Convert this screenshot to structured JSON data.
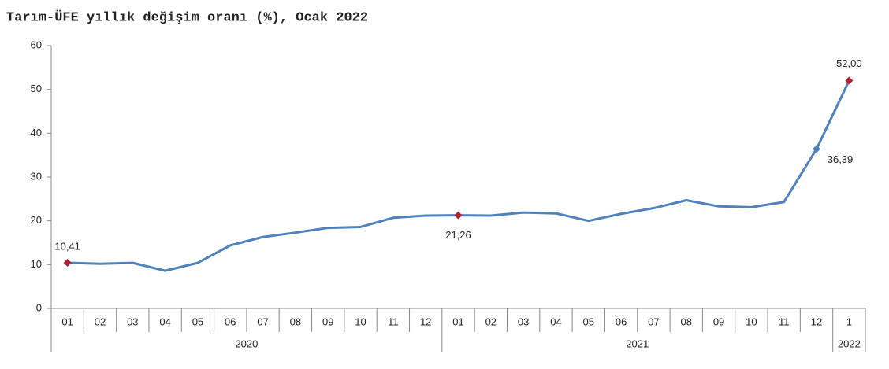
{
  "chart_data": {
    "type": "line",
    "title": "Tarım-ÜFE yıllık değişim oranı (%), Ocak 2022",
    "groups": [
      {
        "name": "2020",
        "categories": [
          "01",
          "02",
          "03",
          "04",
          "05",
          "06",
          "07",
          "08",
          "09",
          "10",
          "11",
          "12"
        ]
      },
      {
        "name": "2021",
        "categories": [
          "01",
          "02",
          "03",
          "04",
          "05",
          "06",
          "07",
          "08",
          "09",
          "10",
          "11",
          "12"
        ]
      },
      {
        "name": "2022",
        "categories": [
          "1"
        ]
      }
    ],
    "values": [
      10.41,
      10.2,
      10.4,
      8.6,
      10.4,
      14.4,
      16.3,
      17.3,
      18.4,
      18.6,
      20.7,
      21.2,
      21.26,
      21.2,
      21.9,
      21.7,
      20.0,
      21.6,
      22.9,
      24.7,
      23.3,
      23.1,
      24.3,
      36.39,
      52.0
    ],
    "value_labels": [
      "10,41",
      null,
      null,
      null,
      null,
      null,
      null,
      null,
      null,
      null,
      null,
      null,
      "21,26",
      null,
      null,
      null,
      null,
      null,
      null,
      null,
      null,
      null,
      null,
      "36,39",
      "52,00"
    ],
    "color": "#4f81bd",
    "marker_colors": [
      "#b0202a",
      null,
      null,
      null,
      null,
      null,
      null,
      null,
      null,
      null,
      null,
      null,
      "#b0202a",
      null,
      null,
      null,
      null,
      null,
      null,
      null,
      null,
      null,
      null,
      "#4f81bd",
      "#b0202a"
    ],
    "ylim": [
      0,
      60
    ],
    "yticks": [
      0,
      10,
      20,
      30,
      40,
      50,
      60
    ],
    "grid": false
  }
}
